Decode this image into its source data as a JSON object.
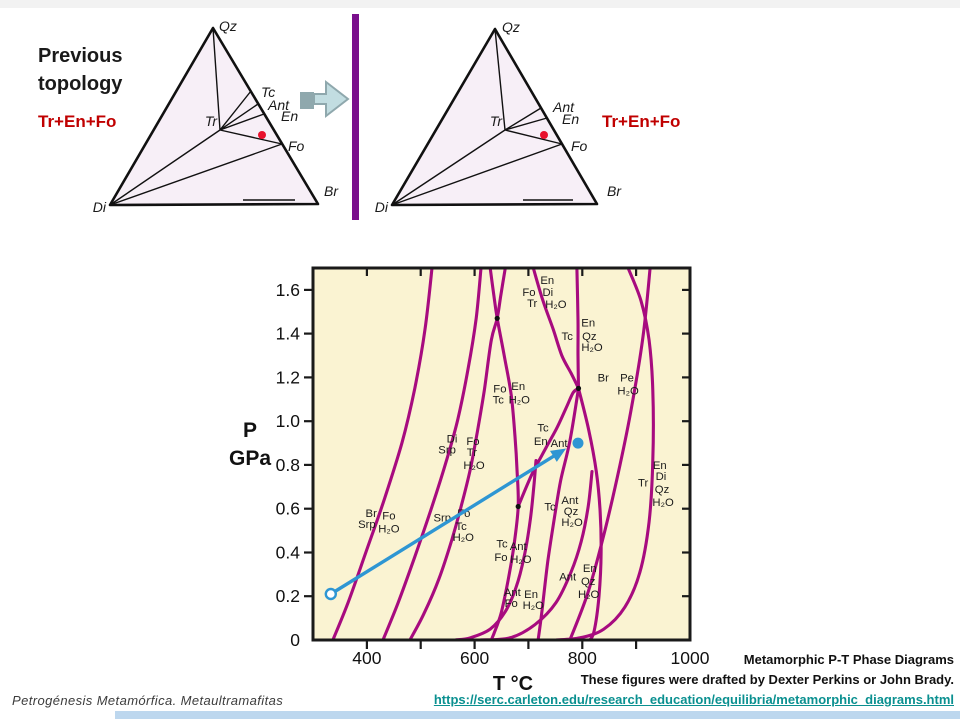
{
  "colors": {
    "accent_red": "#c00000",
    "dot_red": "#e8112d",
    "bar_purple": "#7a0e8c",
    "curve": "#a70b7f",
    "arrow_blue": "#2e96d3",
    "link_teal": "#0a9090",
    "footer_bar": "#bdd7ee",
    "chart_bg": "#faf3d2",
    "block_arrow_fill": "#c2dde1",
    "block_arrow_dark": "#8fa8ad"
  },
  "header": {
    "title_line1": "Previous",
    "title_line2": "topology",
    "assemblage_left": "Tr+En+Fo",
    "assemblage_right": "Tr+En+Fo"
  },
  "triangles": {
    "left": {
      "labels": {
        "qz": "Qz",
        "di": "Di",
        "br": "Br",
        "tr": "Tr",
        "tc": "Tc",
        "ant": "Ant",
        "en": "En",
        "fo": "Fo"
      }
    },
    "right": {
      "labels": {
        "qz": "Qz",
        "di": "Di",
        "br": "Br",
        "tr": "Tr",
        "ant": "Ant",
        "en": "En",
        "fo": "Fo"
      }
    }
  },
  "chart_data": {
    "type": "line",
    "xlabel": "T °C",
    "ylabel_line1": "P",
    "ylabel_line2": "GPa",
    "xlim": [
      300,
      1000
    ],
    "ylim": [
      0,
      1.7
    ],
    "x_ticks_labeled": [
      400,
      600,
      800,
      1000
    ],
    "x_ticks_minor": [
      400,
      500,
      600,
      700,
      800,
      900
    ],
    "y_ticks": [
      0,
      0.2,
      0.4,
      0.6,
      0.8,
      1.0,
      1.2,
      1.4,
      1.6
    ],
    "grid": false,
    "background": "#faf3d2",
    "curve_color": "#a70b7f",
    "frame_color": "#1a1a1a",
    "curves": [
      {
        "id": "brc-srp-fo",
        "points": [
          [
            337,
            0
          ],
          [
            365,
            0.17
          ],
          [
            398,
            0.4
          ],
          [
            432,
            0.64
          ],
          [
            465,
            0.9
          ],
          [
            489,
            1.15
          ],
          [
            508,
            1.42
          ],
          [
            521,
            1.7
          ]
        ]
      },
      {
        "id": "di-srp-fo-tr",
        "points": [
          [
            430,
            0
          ],
          [
            458,
            0.17
          ],
          [
            489,
            0.38
          ],
          [
            521,
            0.61
          ],
          [
            549,
            0.83
          ],
          [
            569,
            1.01
          ],
          [
            588,
            1.24
          ],
          [
            603,
            1.47
          ],
          [
            612,
            1.7
          ]
        ]
      },
      {
        "id": "srp-fo-tc",
        "points": [
          [
            480,
            0
          ],
          [
            506,
            0.12
          ],
          [
            534,
            0.28
          ],
          [
            558,
            0.46
          ],
          [
            575,
            0.61
          ],
          [
            592,
            0.78
          ],
          [
            605,
            0.95
          ],
          [
            618,
            1.14
          ],
          [
            631,
            1.37
          ],
          [
            642,
            1.47
          ],
          [
            649,
            1.58
          ],
          [
            657,
            1.7
          ]
        ]
      },
      {
        "id": "fo-tc-en-ant",
        "points": [
          [
            629,
            1.7
          ],
          [
            636,
            1.57
          ],
          [
            642,
            1.47
          ],
          [
            655,
            1.3
          ],
          [
            668,
            1.12
          ],
          [
            675,
            0.93
          ],
          [
            679,
            0.77
          ],
          [
            681,
            0.61
          ],
          [
            673,
            0.43
          ],
          [
            662,
            0.27
          ],
          [
            649,
            0.12
          ],
          [
            636,
            0.03
          ],
          [
            631,
            0
          ]
        ]
      },
      {
        "id": "tc-en-ant",
        "points": [
          [
            681,
            0.61
          ],
          [
            707,
            0.76
          ],
          [
            733,
            0.88
          ],
          [
            753,
            0.97
          ],
          [
            770,
            1.06
          ],
          [
            783,
            1.13
          ],
          [
            793,
            1.15
          ]
        ]
      },
      {
        "id": "tc-ant-qz",
        "points": [
          [
            793,
            1.15
          ],
          [
            777,
            0.91
          ],
          [
            760,
            0.73
          ],
          [
            749,
            0.57
          ],
          [
            736,
            0.36
          ],
          [
            725,
            0.13
          ],
          [
            718,
            0
          ]
        ]
      },
      {
        "id": "fo-tr-en-di",
        "points": [
          [
            709,
            1.7
          ],
          [
            727,
            1.55
          ],
          [
            746,
            1.42
          ],
          [
            762,
            1.3
          ],
          [
            779,
            1.22
          ],
          [
            793,
            1.15
          ]
        ]
      },
      {
        "id": "tc-en-qz",
        "points": [
          [
            790,
            1.7
          ],
          [
            792,
            1.46
          ],
          [
            792,
            1.3
          ],
          [
            793,
            1.15
          ]
        ]
      },
      {
        "id": "ant-en-qz-hi",
        "points": [
          [
            793,
            1.15
          ],
          [
            812,
            0.96
          ],
          [
            826,
            0.77
          ],
          [
            833,
            0.59
          ],
          [
            835,
            0.4
          ],
          [
            831,
            0.2
          ],
          [
            822,
            0.04
          ],
          [
            814,
            0
          ]
        ]
      },
      {
        "id": "ant-fo-en",
        "points": [
          [
            564,
            0
          ],
          [
            592,
            0.01
          ],
          [
            629,
            0.05
          ],
          [
            657,
            0.13
          ],
          [
            677,
            0.24
          ],
          [
            692,
            0.38
          ],
          [
            703,
            0.54
          ],
          [
            710,
            0.7
          ],
          [
            714,
            0.82
          ]
        ]
      },
      {
        "id": "ant-en-qz-lo",
        "points": [
          [
            610,
            0
          ],
          [
            666,
            0.01
          ],
          [
            712,
            0.07
          ],
          [
            751,
            0.17
          ],
          [
            779,
            0.31
          ],
          [
            798,
            0.45
          ],
          [
            811,
            0.61
          ],
          [
            818,
            0.77
          ]
        ]
      },
      {
        "id": "tr-en-di-qz",
        "points": [
          [
            885,
            1.7
          ],
          [
            909,
            1.55
          ],
          [
            924,
            1.37
          ],
          [
            931,
            1.14
          ],
          [
            931,
            0.82
          ],
          [
            924,
            0.54
          ],
          [
            907,
            0.31
          ],
          [
            879,
            0.15
          ],
          [
            840,
            0.05
          ],
          [
            796,
            0.01
          ],
          [
            751,
            0
          ]
        ]
      },
      {
        "id": "brc-pe",
        "points": [
          [
            777,
            0
          ],
          [
            811,
            0.22
          ],
          [
            842,
            0.5
          ],
          [
            870,
            0.8
          ],
          [
            892,
            1.07
          ],
          [
            913,
            1.39
          ],
          [
            926,
            1.7
          ]
        ]
      }
    ],
    "invariant_points": [
      [
        642,
        1.47
      ],
      [
        793,
        1.15
      ],
      [
        681,
        0.61
      ]
    ],
    "annotations": [
      {
        "text": "En",
        "T": 735,
        "P": 1.645
      },
      {
        "text": "Fo",
        "T": 701,
        "P": 1.59
      },
      {
        "text": "Di",
        "T": 736,
        "P": 1.59
      },
      {
        "text": "Tr",
        "T": 707,
        "P": 1.54
      },
      {
        "text": "H₂O",
        "T": 751,
        "P": 1.535
      },
      {
        "text": "Tc",
        "T": 772,
        "P": 1.39
      },
      {
        "text": "En",
        "T": 811,
        "P": 1.45
      },
      {
        "text": "Qz",
        "T": 813,
        "P": 1.39
      },
      {
        "text": "H₂O",
        "T": 818,
        "P": 1.34
      },
      {
        "text": "Br",
        "T": 839,
        "P": 1.2
      },
      {
        "text": "Pe",
        "T": 883,
        "P": 1.2
      },
      {
        "text": "H₂O",
        "T": 885,
        "P": 1.14
      },
      {
        "text": "Fo",
        "T": 647,
        "P": 1.15
      },
      {
        "text": "Tc",
        "T": 644,
        "P": 1.1
      },
      {
        "text": "En",
        "T": 681,
        "P": 1.16
      },
      {
        "text": "H₂O",
        "T": 683,
        "P": 1.1
      },
      {
        "text": "Di",
        "T": 558,
        "P": 0.92
      },
      {
        "text": "Srp",
        "T": 549,
        "P": 0.87
      },
      {
        "text": "Fo",
        "T": 597,
        "P": 0.91
      },
      {
        "text": "Tr",
        "T": 595,
        "P": 0.86
      },
      {
        "text": "H₂O",
        "T": 599,
        "P": 0.8
      },
      {
        "text": "Tc",
        "T": 727,
        "P": 0.97
      },
      {
        "text": "En",
        "T": 723,
        "P": 0.91
      },
      {
        "text": "Ant",
        "T": 757,
        "P": 0.9
      },
      {
        "text": "Tr",
        "T": 913,
        "P": 0.72
      },
      {
        "text": "En",
        "T": 944,
        "P": 0.8
      },
      {
        "text": "Di",
        "T": 946,
        "P": 0.75
      },
      {
        "text": "Qz",
        "T": 948,
        "P": 0.69
      },
      {
        "text": "H₂O",
        "T": 950,
        "P": 0.63
      },
      {
        "text": "Tc",
        "T": 740,
        "P": 0.61
      },
      {
        "text": "Ant",
        "T": 777,
        "P": 0.64
      },
      {
        "text": "Qz",
        "T": 779,
        "P": 0.59
      },
      {
        "text": "H₂O",
        "T": 781,
        "P": 0.54
      },
      {
        "text": "Br",
        "T": 408,
        "P": 0.58
      },
      {
        "text": "Srp",
        "T": 400,
        "P": 0.53
      },
      {
        "text": "Fo",
        "T": 441,
        "P": 0.57
      },
      {
        "text": "H₂O",
        "T": 441,
        "P": 0.51
      },
      {
        "text": "Srp",
        "T": 540,
        "P": 0.56
      },
      {
        "text": "Fo",
        "T": 580,
        "P": 0.58
      },
      {
        "text": "Tc",
        "T": 575,
        "P": 0.52
      },
      {
        "text": "H₂O",
        "T": 579,
        "P": 0.47
      },
      {
        "text": "Tc",
        "T": 651,
        "P": 0.44
      },
      {
        "text": "Fo",
        "T": 649,
        "P": 0.38
      },
      {
        "text": "Ant",
        "T": 681,
        "P": 0.43
      },
      {
        "text": "H₂O",
        "T": 686,
        "P": 0.37
      },
      {
        "text": "Ant",
        "T": 773,
        "P": 0.29
      },
      {
        "text": "En",
        "T": 814,
        "P": 0.33
      },
      {
        "text": "Qz",
        "T": 811,
        "P": 0.27
      },
      {
        "text": "H₂O",
        "T": 812,
        "P": 0.21
      },
      {
        "text": "Ant",
        "T": 670,
        "P": 0.22
      },
      {
        "text": "Fo",
        "T": 668,
        "P": 0.17
      },
      {
        "text": "En",
        "T": 705,
        "P": 0.21
      },
      {
        "text": "H₂O",
        "T": 709,
        "P": 0.16
      }
    ],
    "path_arrow": {
      "start": [
        333,
        0.21
      ],
      "tip": [
        770,
        0.875
      ],
      "dot": [
        792,
        0.9
      ],
      "color": "#2e96d3"
    }
  },
  "credits": {
    "line1": "Metamorphic P-T Phase Diagrams",
    "line2": "These figures were drafted by Dexter Perkins or John Brady.",
    "url": "https://serc.carleton.edu/research_education/equilibria/metamorphic_diagrams.html"
  },
  "footer": {
    "course": "Petrogénesis Metamórfica.  Metaultramafitas"
  }
}
